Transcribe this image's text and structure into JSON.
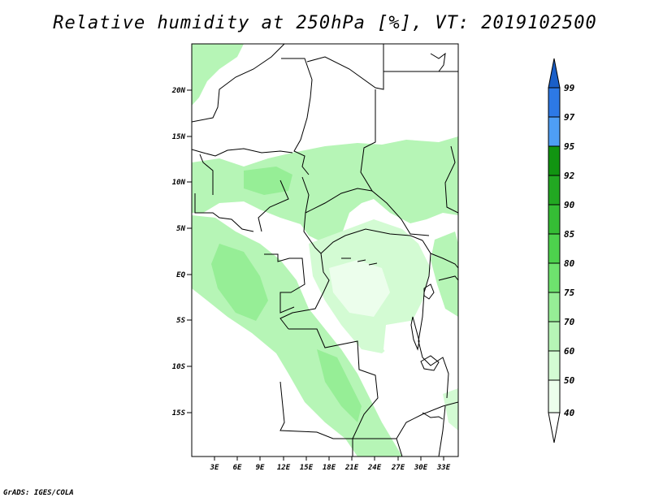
{
  "title": "Relative humidity at 250hPa [%], VT: 2019102500",
  "credit": "GrADS: IGES/COLA",
  "map": {
    "lat_labels": [
      "20N",
      "15N",
      "10N",
      "5N",
      "EQ",
      "5S",
      "10S",
      "15S"
    ],
    "lon_labels": [
      "3E",
      "6E",
      "9E",
      "12E",
      "15E",
      "18E",
      "21E",
      "24E",
      "27E",
      "30E",
      "33E"
    ]
  },
  "colorbar": {
    "labels": [
      "99",
      "97",
      "95",
      "92",
      "90",
      "85",
      "80",
      "75",
      "70",
      "60",
      "50",
      "40"
    ],
    "colors": [
      "#1a5fc8",
      "#2d79e6",
      "#4e9ef5",
      "#119411",
      "#22a822",
      "#35bd35",
      "#4dd24d",
      "#6ee36e",
      "#96ee96",
      "#b6f5b6",
      "#d3fbd3",
      "#ecfeec"
    ]
  }
}
